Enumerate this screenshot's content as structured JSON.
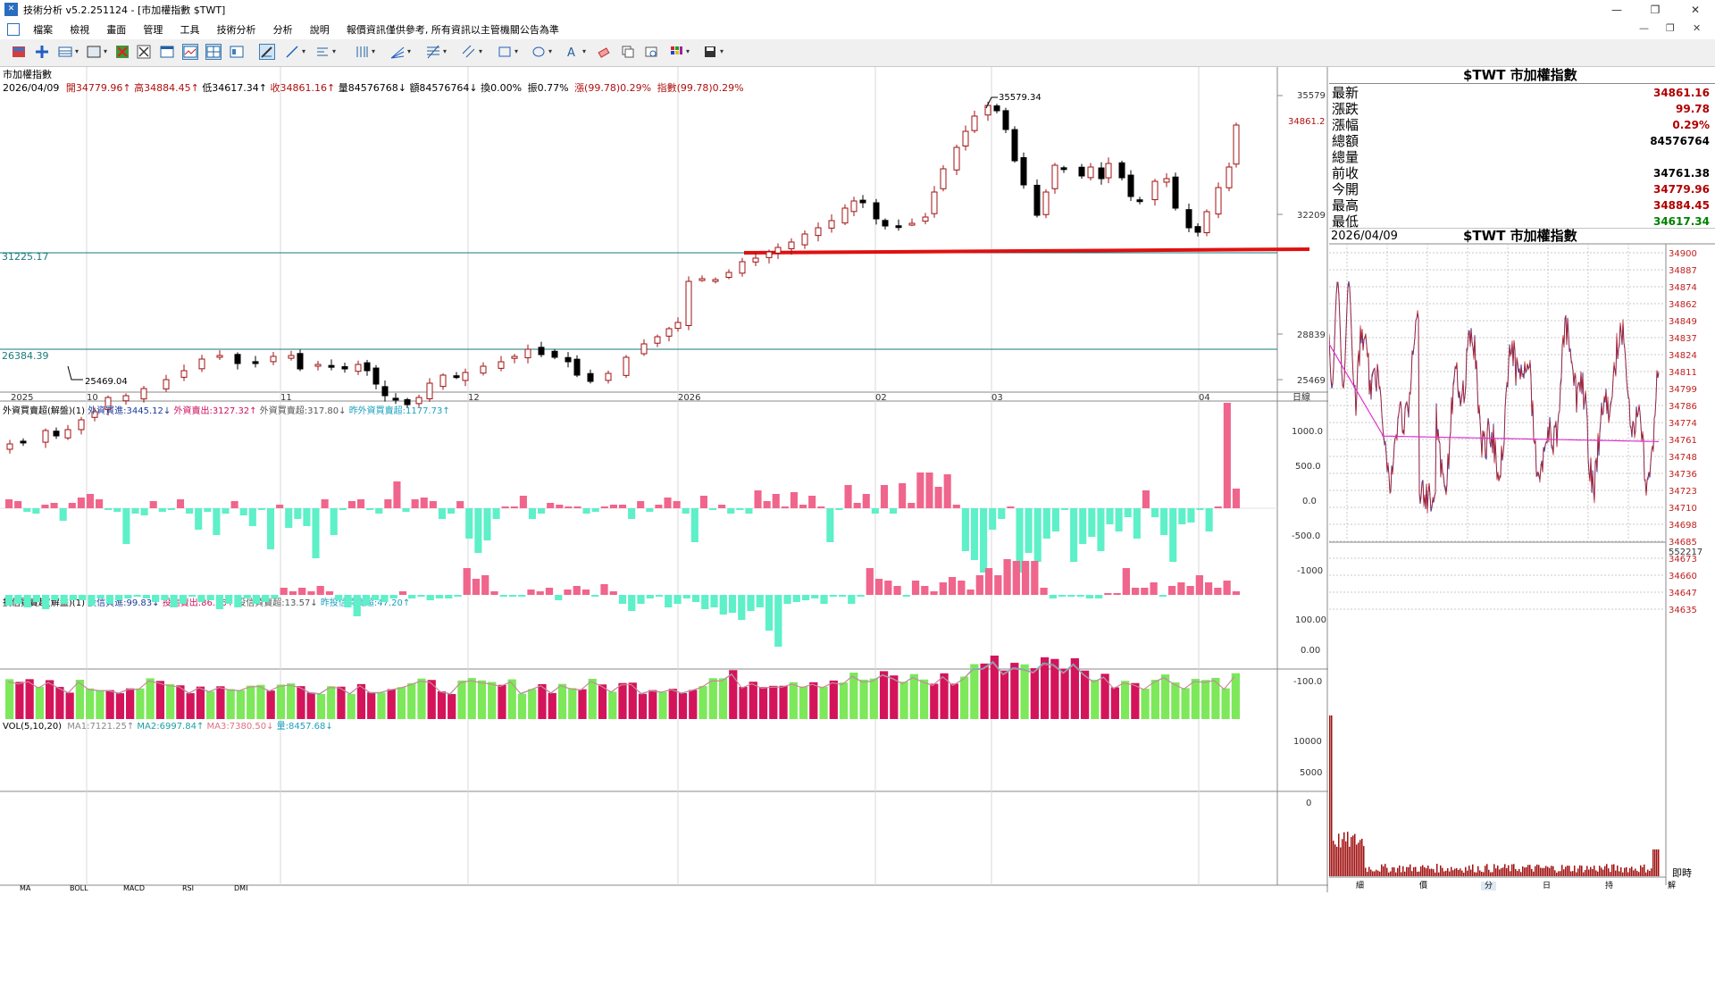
{
  "window": {
    "title": "技術分析 v5.2.251124 - [市加權指數 $TWT]",
    "minimize": "—",
    "maximize": "❐",
    "close": "✕"
  },
  "menu": {
    "items": [
      "檔案",
      "檢視",
      "畫面",
      "管理",
      "工具",
      "技術分析",
      "分析",
      "說明",
      "報價資訊僅供參考, 所有資訊以主管機關公告為準"
    ],
    "sys_buttons": [
      "—",
      "❐",
      "✕"
    ]
  },
  "toolbar": {
    "icons": [
      "layout-icon",
      "crosshair-icon",
      "table-icon",
      "dropdown",
      "delete-chart-icon",
      "cancel-icon",
      "window-icon",
      "line-chart-icon",
      "multi-chart-icon",
      "chart-settings-icon",
      "draw-tool-icon",
      "line-tool-icon",
      "dropdown",
      "text-line-icon",
      "dropdown",
      "bar-tool-icon",
      "dropdown",
      "fan-icon",
      "dropdown",
      "fibonacci-icon",
      "dropdown",
      "parallel-icon",
      "dropdown",
      "rectangle-icon",
      "dropdown",
      "ellipse-icon",
      "dropdown",
      "text-icon",
      "dropdown",
      "eraser-icon",
      "copy-icon",
      "zoom-icon",
      "palette-icon",
      "dropdown",
      "save-icon",
      "dropdown"
    ]
  },
  "main_chart": {
    "symbol_title": "市加權指數",
    "info_line": {
      "date": "2026/04/09",
      "open": "開34779.96↑",
      "high": "高34884.45↑",
      "low": "低34617.34↑",
      "close": "收34861.16↑",
      "volume": "量84576768↓",
      "amount": "額84576764↓",
      "turnover": "換0.00%",
      "amplitude": "振0.77%",
      "change": "漲(99.78)0.29%",
      "index": "指數(99.78)0.29%"
    },
    "price_labels": [
      "35579",
      "32209",
      "28839",
      "25469"
    ],
    "current_price_label": "34861.2",
    "high_annotation": "35579.34",
    "low_annotation": "25469.04",
    "hline1_label": "31225.17",
    "hline2_label": "26384.39",
    "x_labels": [
      {
        "label": "2025"
      },
      {
        "label": "10"
      },
      {
        "label": "11"
      },
      {
        "label": "12"
      },
      {
        "label": "2026"
      },
      {
        "label": "02"
      },
      {
        "label": "03"
      },
      {
        "label": "04"
      }
    ],
    "period_label": "日線",
    "accent_colors": {
      "up": "#b01010",
      "down": "#000000",
      "support": "#e01010",
      "hline": "#006666"
    }
  },
  "foreign_panel": {
    "title": "外資買賣超(解盤)(1)",
    "buy": "外資買進:3445.12↓",
    "sell": "外資賣出:3127.32↑",
    "net": "外資買賣超:317.80↓",
    "prev": "昨外資買賣超:1177.73↑",
    "axis": [
      "1000.0",
      "500.0",
      "0.0",
      "-500.0",
      "-1000"
    ],
    "colors": {
      "pos": "#f0658c",
      "neg": "#5ef0c8"
    }
  },
  "trust_panel": {
    "title": "投信買賣超(解盤)(1)",
    "buy": "投信買進:99.83↓",
    "sell": "投信賣出:86.26↑",
    "net": "投信買賣超:13.57↓",
    "prev": "昨投信買賣超:47.20↑",
    "axis": [
      "100.00",
      "0.00",
      "-100.0"
    ]
  },
  "vol_panel": {
    "title": "VOL(5,10,20)",
    "ma1": "MA1:7121.25↑",
    "ma2": "MA2:6997.84↑",
    "ma3": "MA3:7380.50↓",
    "qty": "量:8457.68↓",
    "axis": [
      "10000",
      "5000",
      "0"
    ],
    "colors": {
      "up": "#d4145a",
      "down": "#7de85a"
    }
  },
  "bottom_tabs_left": [
    "MA",
    "BOLL",
    "MACD",
    "RSI",
    "DMI"
  ],
  "quote": {
    "title": "$TWT 市加權指數",
    "rows": [
      {
        "label": "最新",
        "value": "34861.16",
        "color": "#b00000"
      },
      {
        "label": "漲跌",
        "value": "99.78",
        "color": "#b00000"
      },
      {
        "label": "漲幅",
        "value": "0.29%",
        "color": "#b00000"
      },
      {
        "label": "總額",
        "value": "84576764",
        "color": "#000000"
      },
      {
        "label": "總量",
        "value": "",
        "color": "#000000"
      },
      {
        "label": "前收",
        "value": "34761.38",
        "color": "#000000"
      },
      {
        "label": "今開",
        "value": "34779.96",
        "color": "#b00000"
      },
      {
        "label": "最高",
        "value": "34884.45",
        "color": "#b00000"
      },
      {
        "label": "最低",
        "value": "34617.34",
        "color": "#008000"
      }
    ]
  },
  "intraday": {
    "date": "2026/04/09",
    "title": "$TWT 市加權指數",
    "price_axis": [
      "34900",
      "34887",
      "34874",
      "34862",
      "34849",
      "34837",
      "34824",
      "34811",
      "34799",
      "34786",
      "34774",
      "34761",
      "34748",
      "34736",
      "34723",
      "34710",
      "34698",
      "34685",
      "34673",
      "34660",
      "34647",
      "34635"
    ],
    "vol_label": "552217",
    "realtime_label": "即時"
  },
  "bottom_tabs_right": [
    "細",
    "價",
    "分",
    "日",
    "持",
    "解"
  ]
}
